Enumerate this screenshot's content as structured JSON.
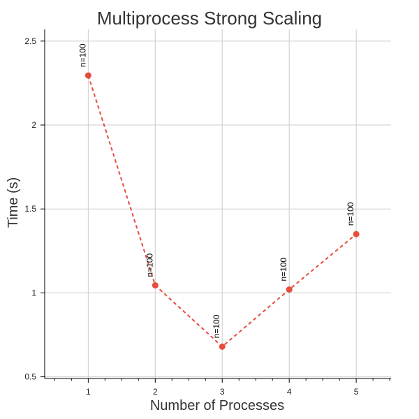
{
  "chart_data": {
    "type": "line",
    "title": "Multiprocess Strong Scaling",
    "xlabel": "Number of Processes",
    "ylabel": "Time (s)",
    "x": [
      1,
      2,
      3,
      4,
      5
    ],
    "series": [
      {
        "values": [
          2.295,
          1.045,
          0.68,
          1.02,
          1.35
        ],
        "labels": [
          "n=100",
          "n=100",
          "n=100",
          "n=100",
          "n=100"
        ],
        "color": "#e74c3c",
        "line_style": "dashed",
        "marker": "circle"
      }
    ],
    "xlim": [
      0.35,
      5.52
    ],
    "ylim": [
      0.49,
      2.57
    ],
    "x_ticks": [
      1,
      2,
      3,
      4,
      5
    ],
    "x_tick_labels": [
      "1",
      "2",
      "3",
      "4",
      "5"
    ],
    "x_minor_ticks": [
      0.5,
      0.75,
      1.25,
      1.5,
      1.75,
      2.25,
      2.5,
      2.75,
      3.25,
      3.5,
      3.75,
      4.25,
      4.5,
      4.75,
      5.25,
      5.5
    ],
    "y_ticks": [
      0.5,
      1,
      1.5,
      2,
      2.5
    ],
    "y_tick_labels": [
      "0.5",
      "1",
      "1.5",
      "2",
      "2.5"
    ],
    "grid": true,
    "grid_color": "#cccccc",
    "axis_color": "#000000",
    "text_color": "#333333"
  }
}
